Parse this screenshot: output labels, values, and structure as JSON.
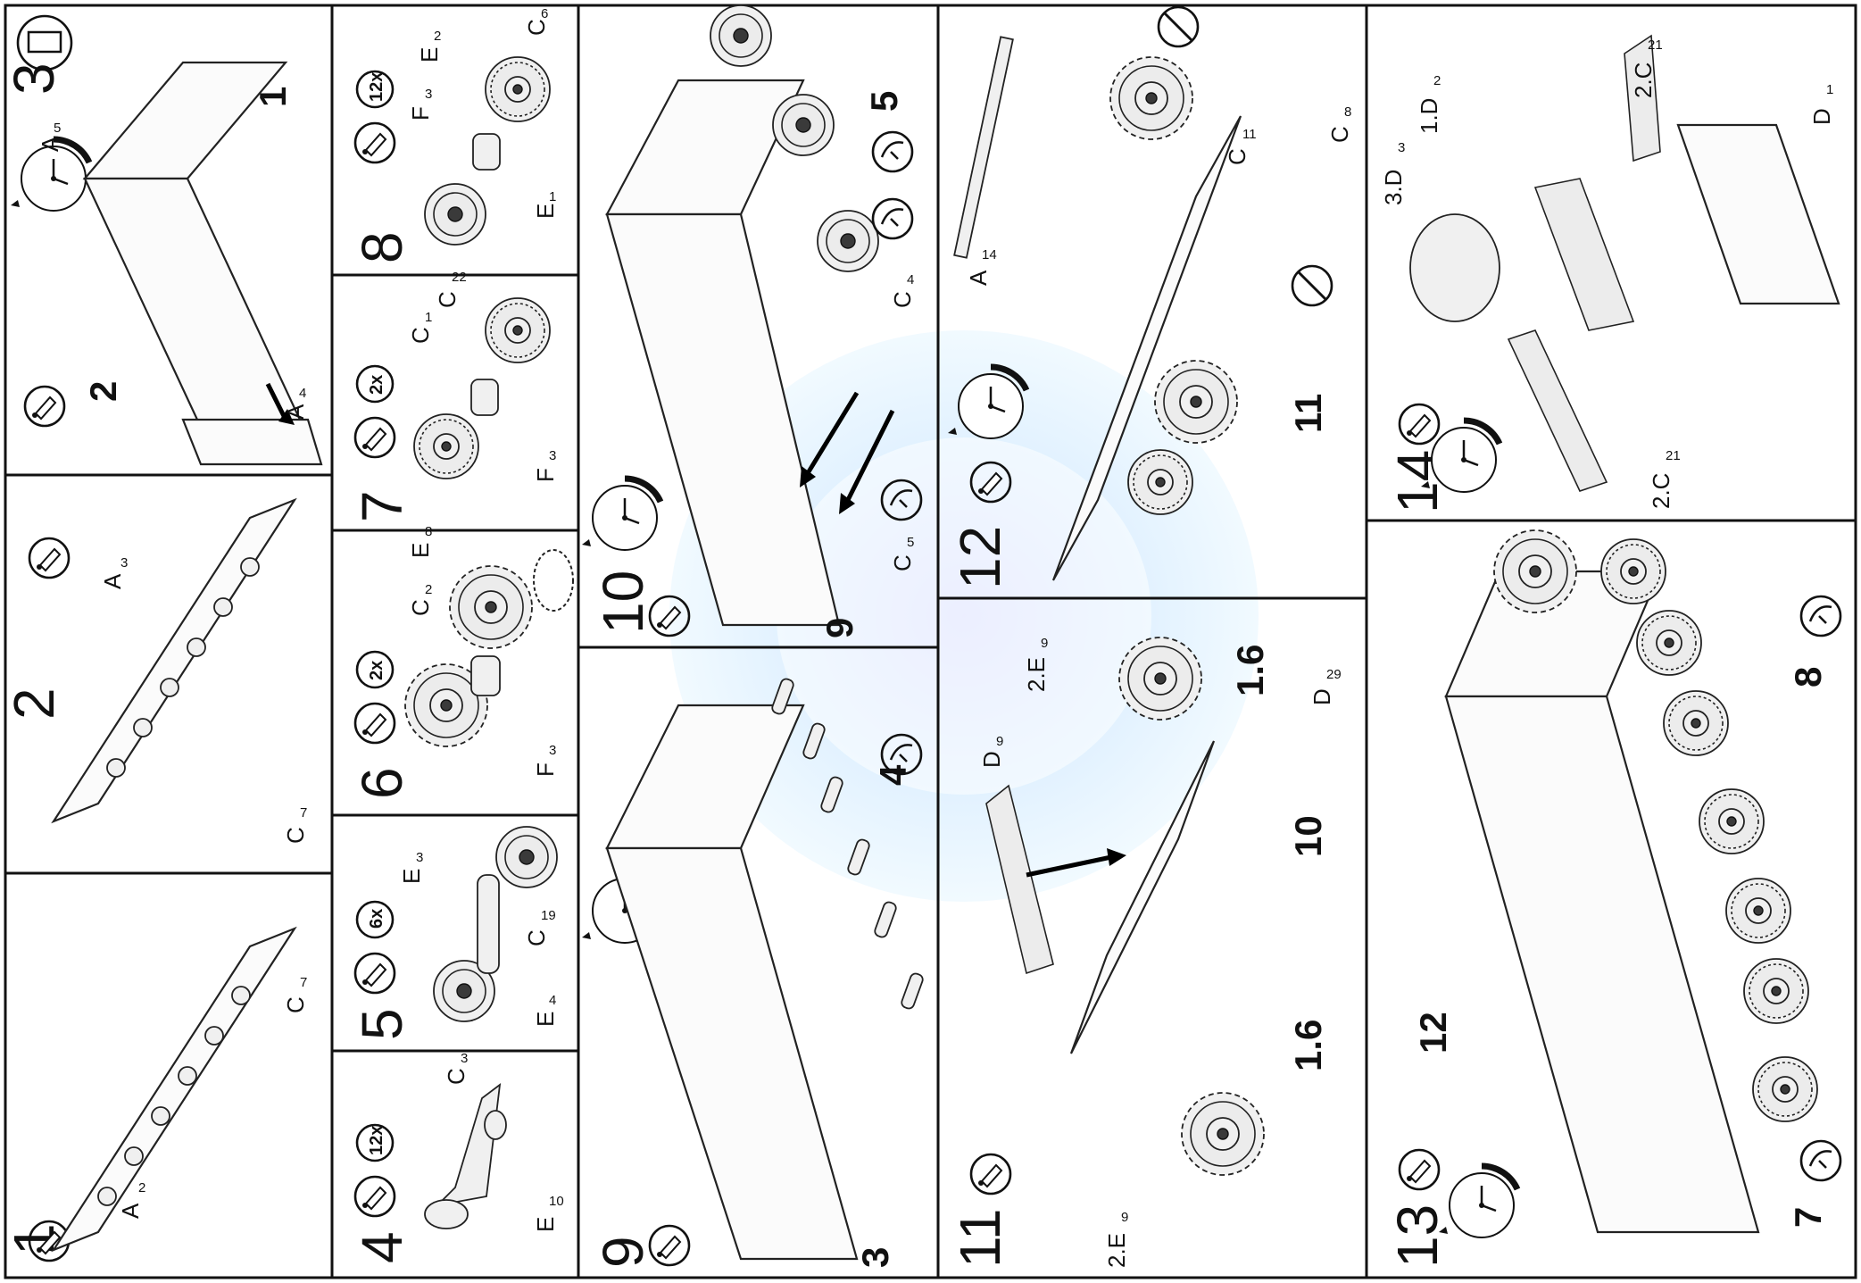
{
  "panels": [
    {
      "id": "p1",
      "step": "1",
      "labels": [
        {
          "t": "A",
          "n": "2"
        },
        {
          "t": "C",
          "n": "7"
        }
      ]
    },
    {
      "id": "p2",
      "step": "2",
      "labels": [
        {
          "t": "A",
          "n": "3"
        },
        {
          "t": "C",
          "n": "7"
        }
      ]
    },
    {
      "id": "p3",
      "step": "3",
      "callouts": [
        "1",
        "2"
      ],
      "labels": [
        {
          "t": "A",
          "n": "5"
        },
        {
          "t": "A",
          "n": "4"
        }
      ]
    },
    {
      "id": "p4",
      "step": "4",
      "qty": "12x",
      "labels": [
        {
          "t": "C",
          "n": "3"
        },
        {
          "t": "E",
          "n": "10"
        }
      ]
    },
    {
      "id": "p5",
      "step": "5",
      "qty": "6x",
      "labels": [
        {
          "t": "E",
          "n": "3"
        },
        {
          "t": "C",
          "n": "19"
        },
        {
          "t": "E",
          "n": "4"
        }
      ]
    },
    {
      "id": "p6",
      "step": "6",
      "qty": "2x",
      "labels": [
        {
          "t": "E",
          "n": "8"
        },
        {
          "t": "C",
          "n": "2"
        },
        {
          "t": "F",
          "n": "3"
        }
      ]
    },
    {
      "id": "p7",
      "step": "7",
      "qty": "2x",
      "labels": [
        {
          "t": "C",
          "n": "1"
        },
        {
          "t": "C",
          "n": "22"
        },
        {
          "t": "F",
          "n": "3"
        }
      ]
    },
    {
      "id": "p8",
      "step": "8",
      "qty": "12x",
      "labels": [
        {
          "t": "E",
          "n": "2"
        },
        {
          "t": "C",
          "n": "6"
        },
        {
          "t": "F",
          "n": "3"
        },
        {
          "t": "E",
          "n": "1"
        }
      ]
    },
    {
      "id": "p9",
      "step": "9",
      "callouts": [
        "3",
        "4"
      ]
    },
    {
      "id": "p10",
      "step": "10",
      "callouts": [
        "9",
        "5"
      ],
      "labels": [
        {
          "t": "C",
          "n": "4"
        },
        {
          "t": "C",
          "n": "5"
        }
      ]
    },
    {
      "id": "p11",
      "step": "11",
      "callouts": [
        "10",
        "1.6",
        "1.6"
      ],
      "labels": [
        {
          "t": "D",
          "n": "9"
        },
        {
          "t": "2.E",
          "n": "9"
        },
        {
          "t": "2.E",
          "n": "9"
        },
        {
          "t": "D",
          "n": "29"
        }
      ]
    },
    {
      "id": "p12",
      "step": "12",
      "callouts": [
        "11"
      ],
      "labels": [
        {
          "t": "A",
          "n": "14"
        },
        {
          "t": "C",
          "n": "11"
        },
        {
          "t": "C",
          "n": "8"
        }
      ]
    },
    {
      "id": "p13",
      "step": "13",
      "callouts": [
        "12",
        "8",
        "7"
      ]
    },
    {
      "id": "p14",
      "step": "14",
      "labels": [
        {
          "t": "3.D",
          "n": "3"
        },
        {
          "t": "1.D",
          "n": "2"
        },
        {
          "t": "2.C",
          "n": "21"
        },
        {
          "t": "D",
          "n": "1"
        },
        {
          "t": "2.C",
          "n": "21"
        }
      ]
    }
  ],
  "clock_ticks": [
    "12",
    "1",
    "2",
    "3",
    "4",
    "5",
    "6",
    "7",
    "8",
    "9",
    "10",
    "11"
  ]
}
